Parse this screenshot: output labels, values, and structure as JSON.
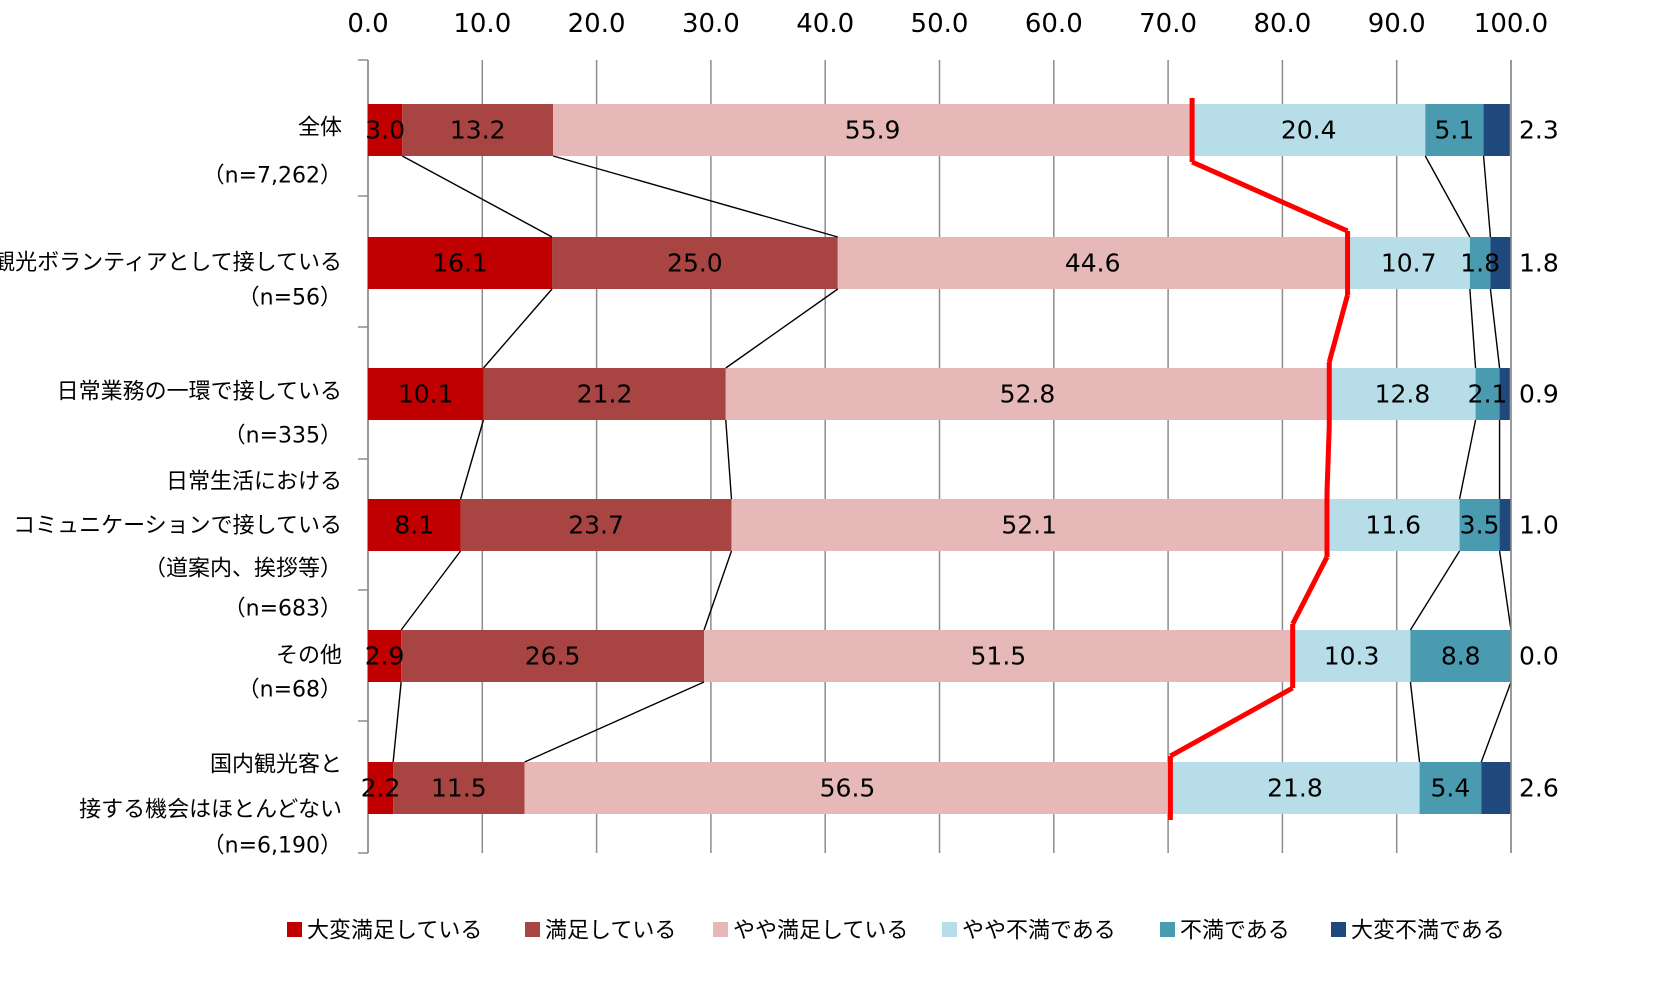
{
  "chart_data": {
    "type": "bar",
    "orientation": "horizontal",
    "stacked": true,
    "xlim": [
      0,
      100
    ],
    "x_ticks": [
      "0.0",
      "10.0",
      "20.0",
      "30.0",
      "40.0",
      "50.0",
      "60.0",
      "70.0",
      "80.0",
      "90.0",
      "100.0"
    ],
    "x_axis_position": "top",
    "grid": "vertical",
    "legend_position": "bottom",
    "categories": [
      {
        "lines": [
          "全体",
          "（n=7,262）"
        ]
      },
      {
        "lines": [
          "観光ボランティアとして接している",
          "（n=56）"
        ]
      },
      {
        "lines": [
          "日常業務の一環で接している",
          "（n=335）"
        ]
      },
      {
        "lines": [
          "日常生活における",
          "コミュニケーションで接している",
          "（道案内、挨拶等）",
          "（n=683）"
        ]
      },
      {
        "lines": [
          "その他",
          "（n=68）"
        ]
      },
      {
        "lines": [
          "国内観光客と",
          "接する機会はほとんどない",
          "（n=6,190）"
        ]
      }
    ],
    "series": [
      {
        "name": "大変満足している",
        "color": "#c00000",
        "values": [
          3.0,
          16.1,
          10.1,
          8.1,
          2.9,
          2.2
        ],
        "labels": [
          "3.0",
          "16.1",
          "10.1",
          "8.1",
          "2.9",
          "2.2"
        ]
      },
      {
        "name": "満足している",
        "color": "#a84442",
        "values": [
          13.2,
          25.0,
          21.2,
          23.7,
          26.5,
          11.5
        ],
        "labels": [
          "13.2",
          "25.0",
          "21.2",
          "23.7",
          "26.5",
          "11.5"
        ]
      },
      {
        "name": "やや満足している",
        "color": "#e6b9b8",
        "values": [
          55.9,
          44.6,
          52.8,
          52.1,
          51.5,
          56.5
        ],
        "labels": [
          "55.9",
          "44.6",
          "52.8",
          "52.1",
          "51.5",
          "56.5"
        ]
      },
      {
        "name": "やや不満である",
        "color": "#b7dee8",
        "values": [
          20.4,
          10.7,
          12.8,
          11.6,
          10.3,
          21.8
        ],
        "labels": [
          "20.4",
          "10.7",
          "12.8",
          "11.6",
          "10.3",
          "21.8"
        ]
      },
      {
        "name": "不満である",
        "color": "#4a9bb0",
        "values": [
          5.1,
          1.8,
          2.1,
          3.5,
          8.8,
          5.4
        ],
        "labels": [
          "5.1",
          "1.8",
          "2.1",
          "3.5",
          "8.8",
          "5.4"
        ]
      },
      {
        "name": "大変不満である",
        "color": "#1f497d",
        "values": [
          2.3,
          1.8,
          0.9,
          1.0,
          0.0,
          2.6
        ],
        "labels": [
          "2.3",
          "1.8",
          "0.9",
          "1.0",
          "0.0",
          "2.6"
        ]
      }
    ],
    "highlight_line_color": "#ff0000"
  }
}
